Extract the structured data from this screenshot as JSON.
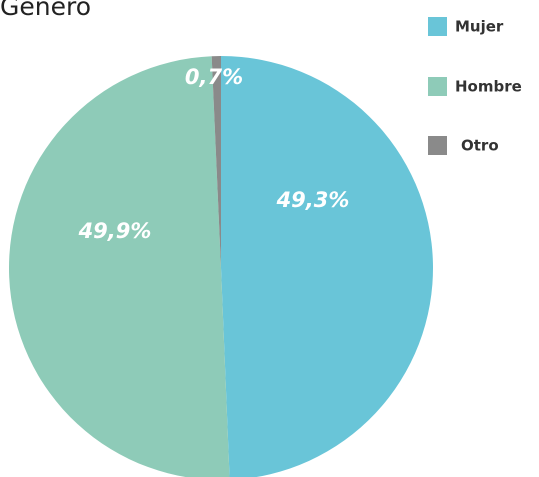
{
  "chart_data": {
    "type": "pie",
    "title": "Género",
    "categories": [
      "Mujer",
      "Hombre",
      "Otro"
    ],
    "values": [
      49.3,
      49.9,
      0.7
    ],
    "value_labels": [
      "49,3%",
      "49,9%",
      "0,7%"
    ],
    "colors": [
      "#69c5d8",
      "#8ecbb8",
      "#8a8a8a"
    ],
    "legend": "right"
  }
}
